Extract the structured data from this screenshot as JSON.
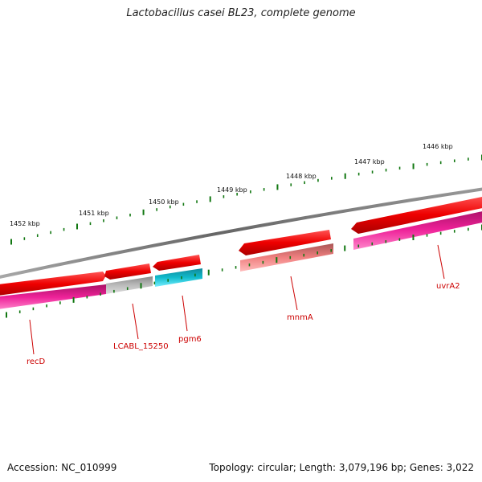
{
  "title": "Lactobacillus casei BL23, complete genome",
  "scale_labels": [
    "1452 kbp",
    "1451 kbp",
    "1450 kbp",
    "1449 kbp",
    "1448 kbp",
    "1447 kbp",
    "1446 kbp"
  ],
  "genes": [
    "recD",
    "LCABL_15250",
    "pgm6",
    "mnmA",
    "uvrA2"
  ],
  "footer": {
    "accession": "Accession: NC_010999",
    "summary": "Topology: circular; Length: 3,079,196 bp; Genes: 3,022"
  },
  "colors": {
    "backbone": "#7a7a7a",
    "cds": "#ee0000",
    "gene_pink": "#ee2299",
    "gene_gray": "#b5b5b5",
    "gene_cyan": "#11bbcc",
    "gene_salmon": "#f08080",
    "tick": "#117711",
    "label": "#cc0000"
  }
}
